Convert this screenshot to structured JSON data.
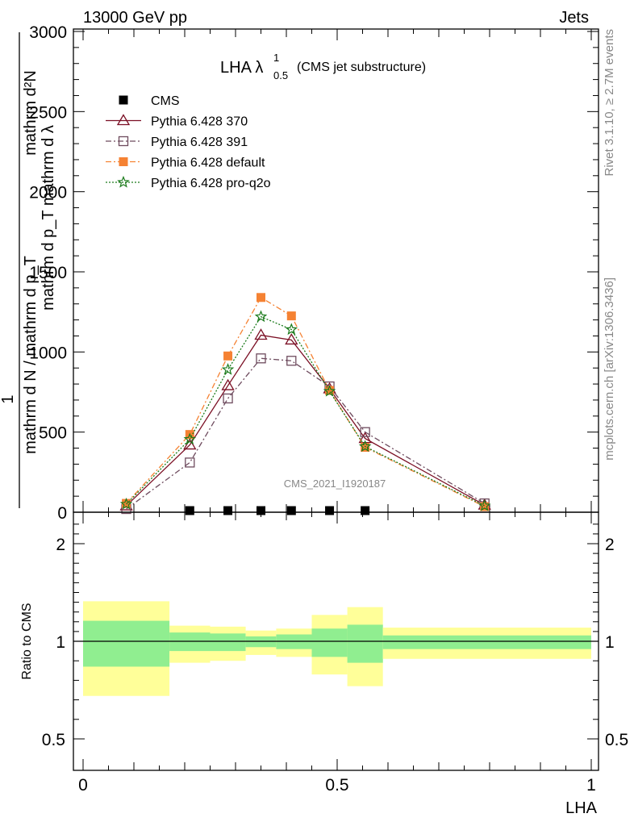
{
  "header": {
    "left": "13000 GeV pp",
    "right": "Jets"
  },
  "side_labels": {
    "rivet": "Rivet 3.1.10, ≥ 2.7M events",
    "mcplots": "mcplots.cern.ch [arXiv:1306.3436]"
  },
  "title": {
    "main": "LHA λ",
    "sup": "1",
    "sub": "0.5",
    "suffix": "(CMS jet substructure)"
  },
  "watermark": "CMS_2021_I1920187",
  "main_ylabel": {
    "numer": "1",
    "denom": "mathrm d N / mathrm d p_T",
    "frac_text": "mathrm d p_T mathrm d λ",
    "frac_numer": "mathrm d²N",
    "display": "1 / mathrm d N / mathrm d p_T · mathrm d²N / mathrm d p_T mathrm d lambda"
  },
  "ratio_ylabel": "Ratio to CMS",
  "xlabel": "LHA",
  "legend": [
    {
      "name": "CMS",
      "color": "#000000",
      "marker": "square-filled",
      "line": "none"
    },
    {
      "name": "Pythia 6.428 370",
      "color": "#7b0f24",
      "marker": "triangle-open",
      "line": "solid"
    },
    {
      "name": "Pythia 6.428 391",
      "color": "#6e4b5e",
      "marker": "square-open",
      "line": "dashdot"
    },
    {
      "name": "Pythia 6.428 default",
      "color": "#f58233",
      "marker": "square-filled",
      "line": "dashdot"
    },
    {
      "name": "Pythia 6.428 pro-q2o",
      "color": "#1a7a1a",
      "marker": "star",
      "line": "dotted"
    }
  ],
  "chart_data": [
    {
      "type": "line",
      "panel": "main",
      "xlim": [
        0,
        1
      ],
      "ylim": [
        0,
        3000
      ],
      "yticks": [
        0,
        500,
        1000,
        1500,
        2000,
        2500,
        3000
      ],
      "ytick_labels": [
        "0",
        "500",
        "1000",
        "1500",
        "2000",
        "2500",
        "3000"
      ],
      "x": [
        0.085,
        0.21,
        0.285,
        0.35,
        0.41,
        0.485,
        0.555,
        0.79
      ],
      "series": [
        {
          "name": "CMS",
          "values": [
            null,
            0,
            0,
            0,
            0,
            0,
            0,
            null
          ]
        },
        {
          "name": "Pythia 6.428 370",
          "values": [
            40,
            420,
            790,
            1105,
            1075,
            770,
            460,
            45
          ]
        },
        {
          "name": "Pythia 6.428 391",
          "values": [
            20,
            310,
            710,
            960,
            945,
            785,
            500,
            55
          ]
        },
        {
          "name": "Pythia 6.428 default",
          "values": [
            55,
            485,
            975,
            1340,
            1225,
            760,
            405,
            35
          ]
        },
        {
          "name": "Pythia 6.428 pro-q2o",
          "values": [
            50,
            455,
            890,
            1220,
            1140,
            755,
            410,
            40
          ]
        }
      ]
    },
    {
      "type": "area",
      "panel": "ratio",
      "xlim": [
        0,
        1
      ],
      "ylim": [
        0.4,
        2.4
      ],
      "yticks": [
        0.5,
        1,
        2
      ],
      "ytick_labels": [
        "0.5",
        "1",
        "2"
      ],
      "xticks": [
        0,
        0.5,
        1
      ],
      "xtick_labels": [
        "0",
        "0.5",
        "1"
      ],
      "reference": 1,
      "bins": [
        {
          "lo": 0.0,
          "hi": 0.17,
          "inner": [
            0.87,
            1.21
          ],
          "outer": [
            0.72,
            1.41
          ]
        },
        {
          "lo": 0.17,
          "hi": 0.25,
          "inner": [
            0.95,
            1.09
          ],
          "outer": [
            0.89,
            1.16
          ]
        },
        {
          "lo": 0.25,
          "hi": 0.32,
          "inner": [
            0.95,
            1.08
          ],
          "outer": [
            0.9,
            1.15
          ]
        },
        {
          "lo": 0.32,
          "hi": 0.38,
          "inner": [
            0.97,
            1.05
          ],
          "outer": [
            0.93,
            1.11
          ]
        },
        {
          "lo": 0.38,
          "hi": 0.45,
          "inner": [
            0.96,
            1.07
          ],
          "outer": [
            0.92,
            1.13
          ]
        },
        {
          "lo": 0.45,
          "hi": 0.52,
          "inner": [
            0.92,
            1.13
          ],
          "outer": [
            0.83,
            1.27
          ]
        },
        {
          "lo": 0.52,
          "hi": 0.59,
          "inner": [
            0.89,
            1.17
          ],
          "outer": [
            0.77,
            1.35
          ]
        },
        {
          "lo": 0.59,
          "hi": 1.0,
          "inner": [
            0.96,
            1.06
          ],
          "outer": [
            0.91,
            1.14
          ]
        }
      ]
    }
  ],
  "colors": {
    "band_inner": "#90ee90",
    "band_outer": "#ffff99",
    "axis": "#000000"
  }
}
